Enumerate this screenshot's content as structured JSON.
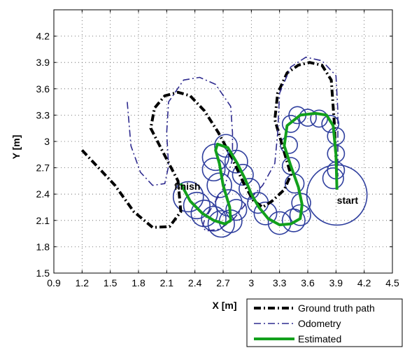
{
  "chart_data": {
    "type": "line",
    "xlabel": "X [m]",
    "ylabel": "Y [m]",
    "xlim": [
      0.9,
      4.5
    ],
    "ylim": [
      1.5,
      4.5
    ],
    "xticks": [
      0.9,
      1.2,
      1.5,
      1.8,
      2.1,
      2.4,
      2.7,
      3.0,
      3.3,
      3.6,
      3.9,
      4.2,
      4.5
    ],
    "xtick_labels": [
      "0.9",
      "1.2",
      "1.5",
      "1.8",
      "2.1",
      "2.4",
      "2.7",
      "3",
      "3.3",
      "3.6",
      "3.9",
      "4.2",
      "4.5"
    ],
    "yticks": [
      1.5,
      1.8,
      2.1,
      2.4,
      2.7,
      3.0,
      3.3,
      3.6,
      3.9,
      4.2
    ],
    "ytick_labels": [
      "1.5",
      "1.8",
      "2.1",
      "2.4",
      "2.7",
      "3",
      "3.3",
      "3.6",
      "3.9",
      "4.2"
    ],
    "grid": true,
    "legend_position": "bottom-right outside",
    "annotations": [
      {
        "text": "finish",
        "x": 2.18,
        "y": 2.45
      },
      {
        "text": "start",
        "x": 3.91,
        "y": 2.29
      }
    ],
    "series": [
      {
        "name": "Ground truth path",
        "style": "dash-dot",
        "color": "#000000",
        "x": [
          1.2,
          1.55,
          1.75,
          1.95,
          2.13,
          2.25,
          2.22,
          2.05,
          1.93,
          1.97,
          2.08,
          2.22,
          2.35,
          2.5,
          2.65,
          2.8,
          2.92,
          3.02,
          3.12,
          3.22,
          3.35,
          3.42,
          3.33,
          3.25,
          3.28,
          3.38,
          3.5,
          3.62,
          3.75,
          3.85,
          3.88,
          3.91
        ],
        "y": [
          2.9,
          2.5,
          2.2,
          2.02,
          2.03,
          2.2,
          2.55,
          2.9,
          3.15,
          3.38,
          3.52,
          3.56,
          3.52,
          3.35,
          3.1,
          2.8,
          2.52,
          2.33,
          2.25,
          2.32,
          2.45,
          2.62,
          2.95,
          3.25,
          3.55,
          3.78,
          3.87,
          3.9,
          3.87,
          3.7,
          3.25,
          2.6
        ]
      },
      {
        "name": "Odometry",
        "style": "dash-dot",
        "color": "#2f2b8f",
        "x": [
          1.68,
          1.72,
          1.82,
          1.95,
          2.08,
          2.12,
          2.1,
          2.12,
          2.28,
          2.45,
          2.62,
          2.78,
          2.8,
          2.8,
          2.72,
          2.58,
          2.5,
          2.48,
          2.52,
          2.66,
          2.8,
          2.95,
          3.12,
          3.25,
          3.28,
          3.3,
          3.42,
          3.58,
          3.75,
          3.9,
          3.92,
          3.92
        ],
        "y": [
          3.45,
          2.95,
          2.65,
          2.5,
          2.52,
          2.72,
          3.1,
          3.45,
          3.7,
          3.73,
          3.65,
          3.4,
          3.1,
          2.8,
          2.5,
          2.25,
          2.1,
          2.02,
          1.98,
          2.0,
          2.1,
          2.3,
          2.5,
          2.75,
          3.1,
          3.55,
          3.85,
          3.96,
          3.92,
          3.75,
          3.35,
          2.6
        ]
      },
      {
        "name": "Estimated",
        "style": "solid",
        "color": "#12a01c",
        "x": [
          2.25,
          2.35,
          2.48,
          2.6,
          2.72,
          2.78,
          2.77,
          2.7,
          2.66,
          2.62,
          2.64,
          2.75,
          2.85,
          2.93,
          3.0,
          3.08,
          3.18,
          3.3,
          3.42,
          3.52,
          3.54,
          3.5,
          3.42,
          3.35,
          3.38,
          3.52,
          3.68,
          3.8,
          3.87,
          3.9,
          3.91
        ],
        "y": [
          2.52,
          2.32,
          2.18,
          2.1,
          2.06,
          2.1,
          2.25,
          2.5,
          2.75,
          2.9,
          2.97,
          2.93,
          2.75,
          2.58,
          2.4,
          2.25,
          2.12,
          2.05,
          2.06,
          2.12,
          2.28,
          2.48,
          2.72,
          2.95,
          3.18,
          3.3,
          3.32,
          3.3,
          3.18,
          2.85,
          2.45
        ]
      }
    ],
    "uncertainty_circles": {
      "color": "#2f3f9e",
      "centers_x": [
        2.33,
        2.42,
        2.5,
        2.6,
        2.68,
        2.78,
        2.84,
        2.76,
        2.66,
        2.6,
        2.62,
        2.73,
        2.84,
        2.91,
        2.98,
        3.07,
        3.15,
        3.3,
        3.45,
        3.52,
        3.53,
        3.46,
        3.42,
        3.4,
        3.42,
        3.49,
        3.6,
        3.72,
        3.84,
        3.9,
        3.9,
        3.9,
        3.87,
        3.91
      ],
      "centers_y": [
        2.37,
        2.27,
        2.18,
        2.12,
        2.06,
        2.09,
        2.22,
        2.3,
        2.5,
        2.68,
        2.82,
        2.95,
        2.77,
        2.62,
        2.46,
        2.3,
        2.18,
        2.07,
        2.1,
        2.16,
        2.3,
        2.52,
        2.72,
        2.96,
        3.2,
        3.3,
        3.27,
        3.26,
        3.2,
        3.06,
        2.86,
        2.67,
        2.58,
        2.39
      ],
      "radii": [
        0.16,
        0.14,
        0.14,
        0.13,
        0.14,
        0.12,
        0.11,
        0.14,
        0.13,
        0.12,
        0.14,
        0.12,
        0.12,
        0.11,
        0.11,
        0.11,
        0.12,
        0.12,
        0.12,
        0.11,
        0.1,
        0.1,
        0.09,
        0.09,
        0.09,
        0.09,
        0.09,
        0.09,
        0.09,
        0.09,
        0.09,
        0.09,
        0.11,
        0.32
      ]
    }
  }
}
